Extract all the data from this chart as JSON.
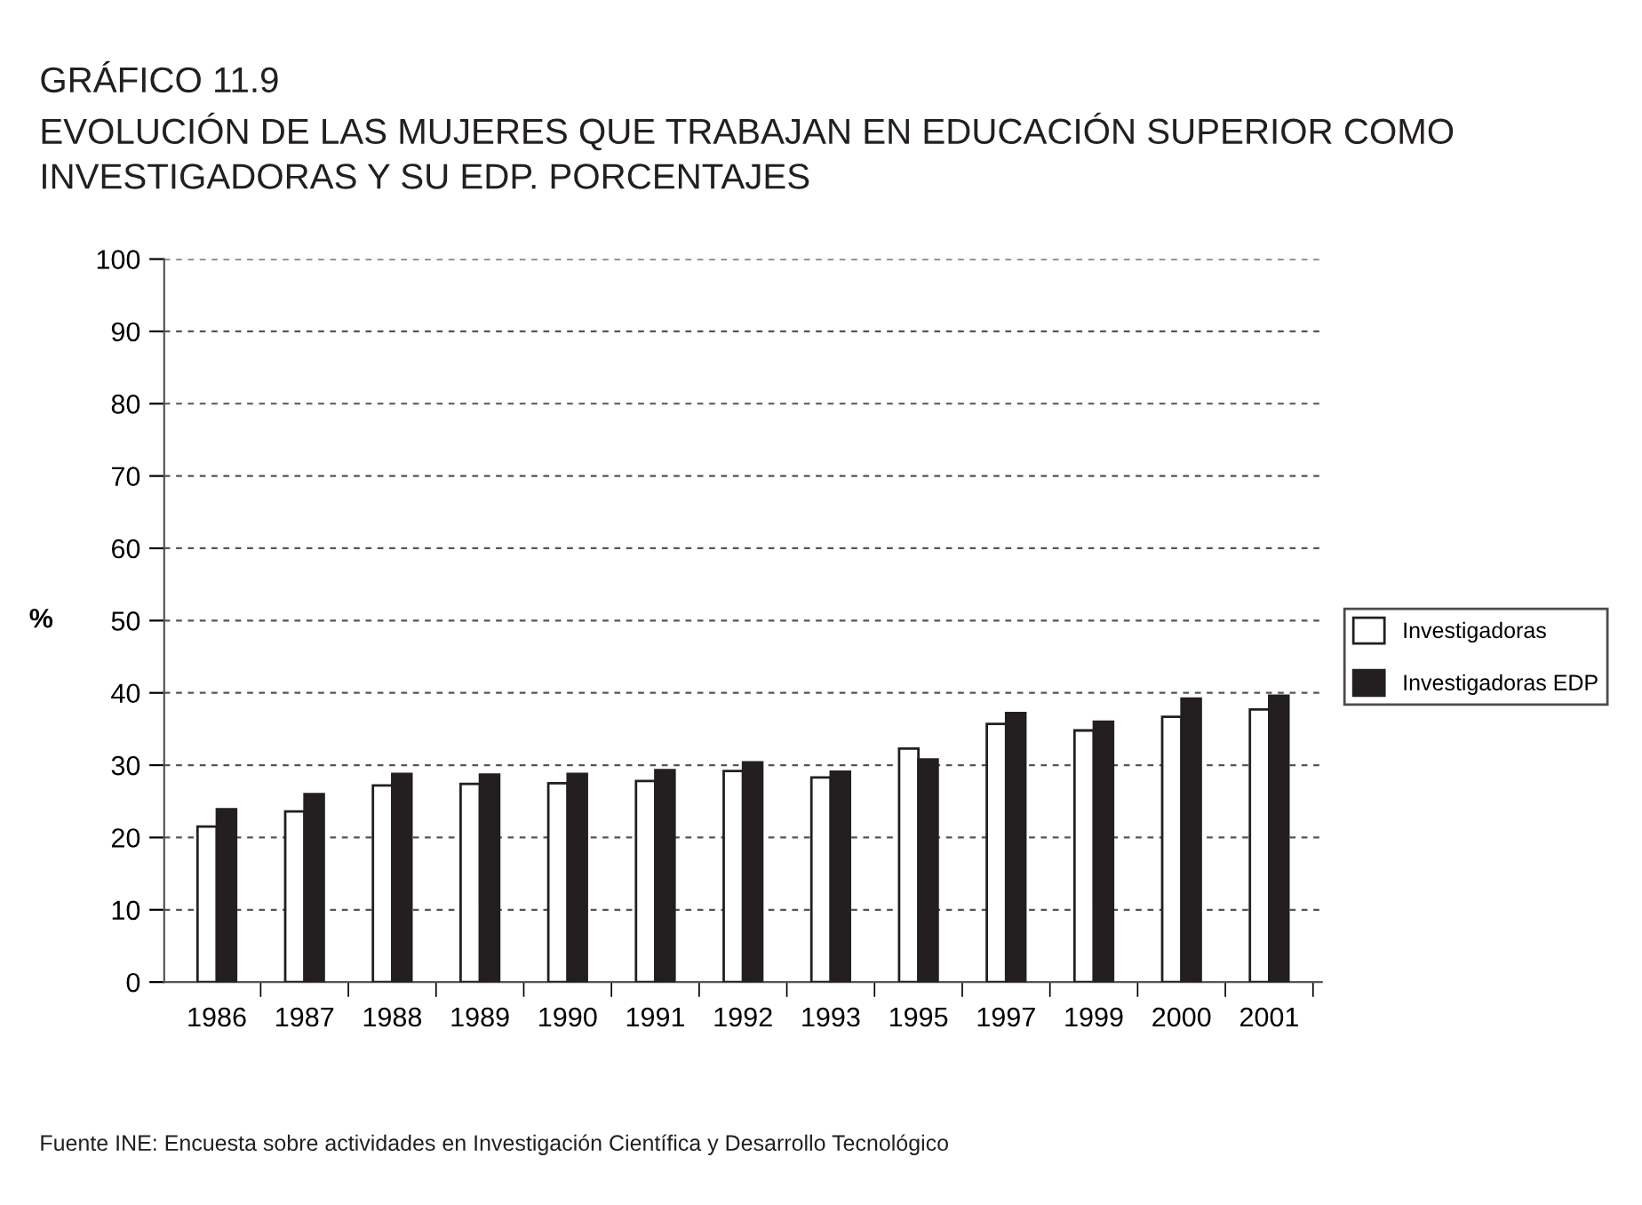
{
  "chart_data": {
    "type": "bar",
    "title": "GRÁFICO 11.9\nEVOLUCIÓN DE LAS MUJERES QUE TRABAJAN EN EDUCACIÓN SUPERIOR COMO\nINVESTIGADORAS Y SU EDP. PORCENTAJES",
    "ylabel": "%",
    "categories": [
      "1986",
      "1987",
      "1988",
      "1989",
      "1990",
      "1991",
      "1992",
      "1993",
      "1995",
      "1997",
      "1999",
      "2000",
      "2001"
    ],
    "series": [
      {
        "name": "Investigadoras",
        "color": "#ffffff",
        "values": [
          21.5,
          23.6,
          27.2,
          27.4,
          27.5,
          27.8,
          29.2,
          28.3,
          32.3,
          35.7,
          34.8,
          36.7,
          37.7
        ]
      },
      {
        "name": "Investigadoras EDP",
        "color": "#231f20",
        "values": [
          23.9,
          26.0,
          28.8,
          28.7,
          28.8,
          29.3,
          30.4,
          29.1,
          30.8,
          37.2,
          36.0,
          39.2,
          39.6
        ]
      }
    ],
    "ylim": [
      0,
      100
    ],
    "yticks": [
      0,
      10,
      20,
      30,
      40,
      50,
      60,
      70,
      80,
      90,
      100
    ],
    "grid": "y",
    "legend": "right",
    "annotations": [
      "Fuente INE: Encuesta sobre actividades en Investigación Científica y Desarrollo Tecnológico"
    ]
  }
}
